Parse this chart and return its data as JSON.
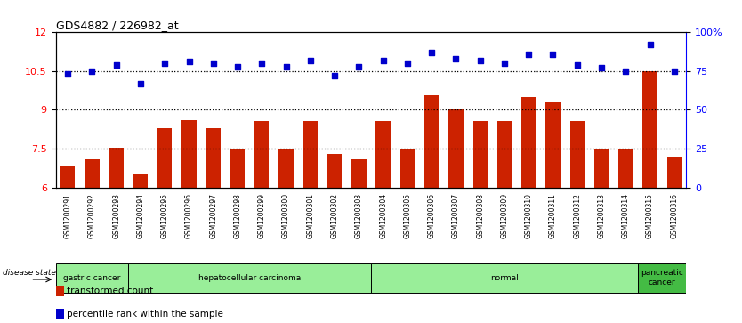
{
  "title": "GDS4882 / 226982_at",
  "samples": [
    "GSM1200291",
    "GSM1200292",
    "GSM1200293",
    "GSM1200294",
    "GSM1200295",
    "GSM1200296",
    "GSM1200297",
    "GSM1200298",
    "GSM1200299",
    "GSM1200300",
    "GSM1200301",
    "GSM1200302",
    "GSM1200303",
    "GSM1200304",
    "GSM1200305",
    "GSM1200306",
    "GSM1200307",
    "GSM1200308",
    "GSM1200309",
    "GSM1200310",
    "GSM1200311",
    "GSM1200312",
    "GSM1200313",
    "GSM1200314",
    "GSM1200315",
    "GSM1200316"
  ],
  "bar_values": [
    6.85,
    7.1,
    7.55,
    6.55,
    8.3,
    8.6,
    8.3,
    7.5,
    8.55,
    7.5,
    8.55,
    7.3,
    7.1,
    8.55,
    7.5,
    9.55,
    9.05,
    8.55,
    8.55,
    9.5,
    9.3,
    8.55,
    7.5,
    7.5,
    10.5,
    7.2
  ],
  "scatter_values": [
    73,
    75,
    79,
    67,
    80,
    81,
    80,
    78,
    80,
    78,
    82,
    72,
    78,
    82,
    80,
    87,
    83,
    82,
    80,
    86,
    86,
    79,
    77,
    75,
    92,
    75
  ],
  "disease_groups": [
    {
      "label": "gastric cancer",
      "start": 0,
      "end": 3,
      "color": "#99ee99"
    },
    {
      "label": "hepatocellular carcinoma",
      "start": 3,
      "end": 13,
      "color": "#99ee99"
    },
    {
      "label": "normal",
      "start": 13,
      "end": 24,
      "color": "#99ee99"
    },
    {
      "label": "pancreatic\ncancer",
      "start": 24,
      "end": 26,
      "color": "#44bb44"
    }
  ],
  "bar_color": "#cc2200",
  "scatter_color": "#0000cc",
  "ylim_left": [
    6,
    12
  ],
  "ylim_right": [
    0,
    100
  ],
  "yticks_left": [
    6,
    7.5,
    9,
    10.5,
    12
  ],
  "ytick_labels_left": [
    "6",
    "7.5",
    "9",
    "10.5",
    "12"
  ],
  "yticks_right": [
    0,
    25,
    50,
    75,
    100
  ],
  "ytick_labels_right": [
    "0",
    "25",
    "50",
    "75",
    "100%"
  ],
  "hlines": [
    7.5,
    9.0,
    10.5
  ],
  "disease_state_label": "disease state",
  "legend_items": [
    {
      "color": "#cc2200",
      "label": "transformed count"
    },
    {
      "color": "#0000cc",
      "label": "percentile rank within the sample"
    }
  ]
}
